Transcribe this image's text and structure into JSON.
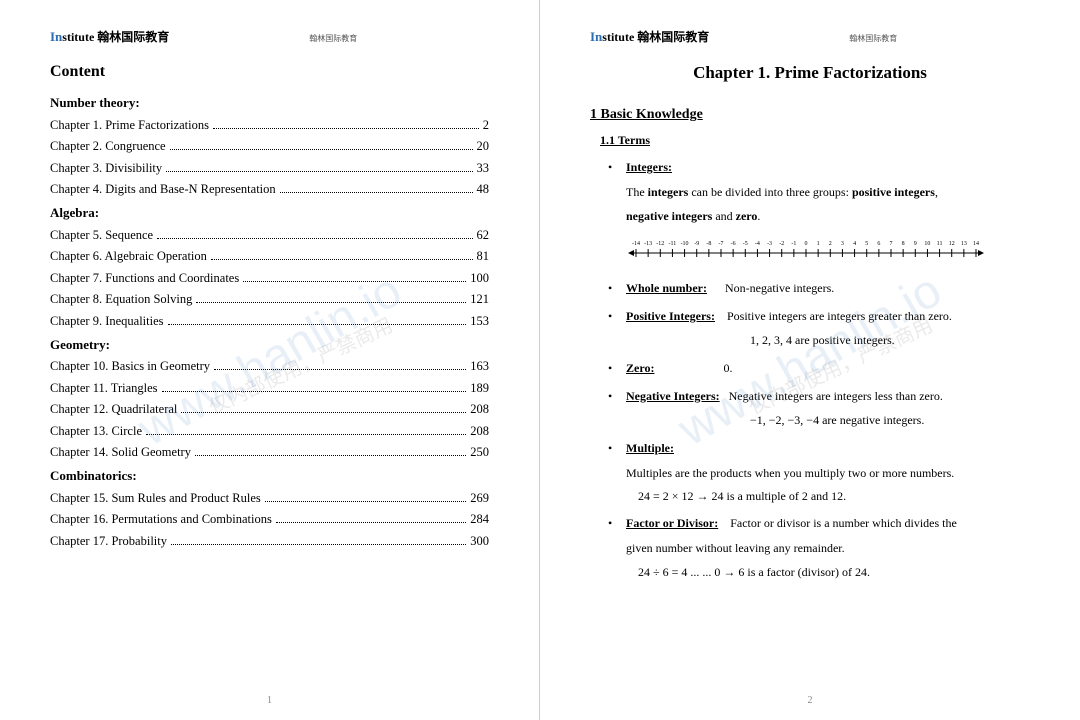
{
  "logo_text": "Institute 翰林国际教育",
  "header_sub": "翰林国际教育",
  "watermark": "www.hanlin.io",
  "watermark2": "仅内部使用，严禁商用",
  "left": {
    "title": "Content",
    "sections": [
      {
        "name": "Number theory:",
        "items": [
          {
            "label": "Chapter 1. Prime Factorizations",
            "page": "2"
          },
          {
            "label": "Chapter 2. Congruence",
            "page": "20"
          },
          {
            "label": "Chapter 3. Divisibility",
            "page": "33"
          },
          {
            "label": "Chapter 4. Digits and Base-N Representation",
            "page": "48"
          }
        ]
      },
      {
        "name": "Algebra:",
        "items": [
          {
            "label": "Chapter 5. Sequence",
            "page": "62"
          },
          {
            "label": "Chapter 6. Algebraic Operation",
            "page": "81"
          },
          {
            "label": "Chapter 7. Functions and Coordinates",
            "page": "100"
          },
          {
            "label": "Chapter 8. Equation Solving",
            "page": "121"
          },
          {
            "label": "Chapter 9. Inequalities",
            "page": "153"
          }
        ]
      },
      {
        "name": "Geometry:",
        "items": [
          {
            "label": "Chapter 10. Basics in Geometry",
            "page": "163"
          },
          {
            "label": "Chapter 11. Triangles",
            "page": "189"
          },
          {
            "label": "Chapter 12. Quadrilateral",
            "page": "208"
          },
          {
            "label": "Chapter 13. Circle",
            "page": "208"
          },
          {
            "label": "Chapter 14. Solid Geometry",
            "page": "250"
          }
        ]
      },
      {
        "name": "Combinatorics:",
        "items": [
          {
            "label": "Chapter 15. Sum Rules and Product Rules",
            "page": "269"
          },
          {
            "label": "Chapter 16. Permutations and Combinations",
            "page": "284"
          },
          {
            "label": "Chapter 17. Probability",
            "page": "300"
          }
        ]
      }
    ],
    "pagenum": "1"
  },
  "right": {
    "chapter_title": "Chapter 1. Prime Factorizations",
    "section": "1 Basic Knowledge",
    "terms_heading": "1.1 Terms",
    "integers_label": "Integers:",
    "integers_desc1": "The ",
    "integers_desc1b": "integers",
    "integers_desc1c": " can be divided into three groups: ",
    "integers_desc1d": "positive integers",
    "integers_desc1e": ",",
    "integers_desc2a": "negative integers",
    "integers_desc2b": " and ",
    "integers_desc2c": "zero",
    "integers_desc2d": ".",
    "whole_label": "Whole number:",
    "whole_desc": "Non-negative integers.",
    "pos_label": "Positive Integers:",
    "pos_desc": "Positive integers are integers greater than zero.",
    "pos_desc2": "1, 2, 3, 4  are positive integers.",
    "zero_label": "Zero:",
    "zero_desc": "0.",
    "neg_label": "Negative Integers:",
    "neg_desc": "Negative integers are integers less than zero.",
    "neg_desc2": "−1, −2, −3, −4  are negative integers.",
    "mult_label": "Multiple:",
    "mult_desc": "Multiples are the products when you multiply two or more numbers.",
    "mult_math": "24 = 2 × 12        →        24 is a multiple of 2 and 12.",
    "factor_label": "Factor or Divisor:",
    "factor_desc": "Factor or divisor is a number which divides the",
    "factor_desc2": "given number without leaving any remainder.",
    "factor_math": "24 ÷ 6 = 4  ... ... 0        →        6 is a factor (divisor) of 24.",
    "pagenum": "2",
    "numline_ticks": [
      -14,
      -13,
      -12,
      -11,
      -10,
      -9,
      -8,
      -7,
      -6,
      -5,
      -4,
      -3,
      -2,
      -1,
      0,
      1,
      2,
      3,
      4,
      5,
      6,
      7,
      8,
      9,
      10,
      11,
      12,
      13,
      14
    ]
  }
}
